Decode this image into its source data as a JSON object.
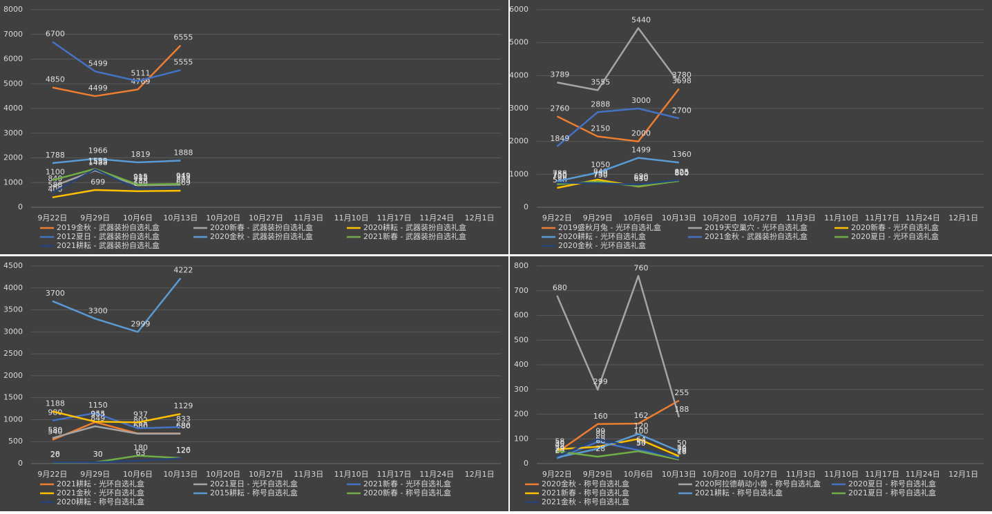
{
  "chart_data": [
    {
      "type": "line",
      "categories": [
        "9月22日",
        "9月29日",
        "10月6日",
        "10月13日",
        "10月20日",
        "10月27日",
        "11月3日",
        "11月10日",
        "11月17日",
        "11月24日",
        "12月1日"
      ],
      "ylim": [
        0,
        8000
      ],
      "yticks": [
        0,
        1000,
        2000,
        3000,
        4000,
        5000,
        6000,
        7000,
        8000
      ],
      "grid": true,
      "legend": "bottom",
      "series": [
        {
          "name": "2019金秋 - 武器装扮自选礼盒",
          "color": "#ed7d31",
          "values": [
            4850,
            4499,
            4769,
            6555,
            null,
            null,
            null,
            null,
            null,
            null,
            null
          ]
        },
        {
          "name": "2020新春 - 武器装扮自选礼盒",
          "color": "#a5a5a5",
          "values": [
            840,
            1488,
            888,
            915,
            null,
            null,
            null,
            null,
            null,
            null,
            null
          ]
        },
        {
          "name": "2020耕耘 - 武器装扮自选礼盒",
          "color": "#ffc000",
          "values": [
            400,
            699,
            650,
            669,
            null,
            null,
            null,
            null,
            null,
            null,
            null
          ]
        },
        {
          "name": "2012夏日 - 武器装扮自选礼盒",
          "color": "#4472c4",
          "values": [
            6700,
            5499,
            5111,
            5555,
            null,
            null,
            null,
            null,
            null,
            null,
            null
          ]
        },
        {
          "name": "2020金秋 - 武器装扮自选礼盒",
          "color": "#5b9bd5",
          "values": [
            1788,
            1966,
            1819,
            1888,
            null,
            null,
            null,
            null,
            null,
            null,
            null
          ]
        },
        {
          "name": "2021新春 - 武器装扮自选礼盒",
          "color": "#70ad47",
          "values": [
            1100,
            1553,
            915,
            949,
            null,
            null,
            null,
            null,
            null,
            null,
            null
          ]
        },
        {
          "name": "2021耕耘 - 武器装扮自选礼盒",
          "color": "#264478",
          "values": [
            588,
            1535,
            738,
            803,
            null,
            null,
            null,
            null,
            null,
            null,
            null
          ]
        }
      ]
    },
    {
      "type": "line",
      "categories": [
        "9月22日",
        "9月29日",
        "10月6日",
        "10月13日",
        "10月20日",
        "10月27日",
        "11月3日",
        "11月10日",
        "11月17日",
        "11月24日",
        "12月1日"
      ],
      "ylim": [
        0,
        6000
      ],
      "yticks": [
        0,
        1000,
        2000,
        3000,
        4000,
        5000,
        6000
      ],
      "grid": true,
      "legend": "bottom",
      "series": [
        {
          "name": "2019盛秋月兔 - 光环自选礼盒",
          "color": "#ed7d31",
          "values": [
            2760,
            2150,
            2000,
            3598,
            null,
            null,
            null,
            null,
            null,
            null,
            null
          ]
        },
        {
          "name": "2019天空巢穴 - 光环自选礼盒",
          "color": "#a5a5a5",
          "values": [
            3789,
            3555,
            5440,
            3780,
            null,
            null,
            null,
            null,
            null,
            null,
            null
          ]
        },
        {
          "name": "2020新春 - 光环自选礼盒",
          "color": "#ffc000",
          "values": [
            588,
            840,
            630,
            805,
            null,
            null,
            null,
            null,
            null,
            null,
            null
          ]
        },
        {
          "name": "2020耕耘 - 光环自选礼盒",
          "color": "#5b9bd5",
          "values": [
            788,
            1050,
            1499,
            1360,
            null,
            null,
            null,
            null,
            null,
            null,
            null
          ]
        },
        {
          "name": "2021金秋 - 武器装扮自选礼盒",
          "color": "#4472c4",
          "values": [
            1849,
            2888,
            3000,
            2700,
            null,
            null,
            null,
            null,
            null,
            null,
            null
          ]
        },
        {
          "name": "2020夏日 - 光环自选礼盒",
          "color": "#70ad47",
          "values": [
            700,
            780,
            640,
            800,
            null,
            null,
            null,
            null,
            null,
            null,
            null
          ]
        },
        {
          "name": "2020金秋 - 光环自选礼盒",
          "color": "#264478",
          "values": [
            750,
            730,
            690,
            825,
            null,
            null,
            null,
            null,
            null,
            null,
            null
          ]
        }
      ]
    },
    {
      "type": "line",
      "categories": [
        "9月22日",
        "9月29日",
        "10月6日",
        "10月13日",
        "10月20日",
        "10月27日",
        "11月3日",
        "11月10日",
        "11月17日",
        "11月24日",
        "12月1日"
      ],
      "ylim": [
        0,
        4500
      ],
      "yticks": [
        0,
        500,
        1000,
        1500,
        2000,
        2500,
        3000,
        3500,
        4000,
        4500
      ],
      "grid": true,
      "legend": "bottom",
      "series": [
        {
          "name": "2021耕耘 - 光环自选礼盒",
          "color": "#ed7d31",
          "values": [
            540,
            944,
            686,
            686,
            null,
            null,
            null,
            null,
            null,
            null,
            null
          ]
        },
        {
          "name": "2021夏日 - 光环自选礼盒",
          "color": "#a5a5a5",
          "values": [
            580,
            849,
            680,
            680,
            null,
            null,
            null,
            null,
            null,
            null,
            null
          ]
        },
        {
          "name": "2021新春 - 光环自选礼盒",
          "color": "#4472c4",
          "values": [
            980,
            1150,
            802,
            833,
            null,
            null,
            null,
            null,
            null,
            null,
            null
          ]
        },
        {
          "name": "2021金秋 - 光环自选礼盒",
          "color": "#ffc000",
          "values": [
            1188,
            955,
            937,
            1129,
            null,
            null,
            null,
            null,
            null,
            null,
            null
          ]
        },
        {
          "name": "2015耕耘 - 称号自选礼盒",
          "color": "#5b9bd5",
          "values": [
            3700,
            3300,
            2999,
            4222,
            null,
            null,
            null,
            null,
            null,
            null,
            null
          ]
        },
        {
          "name": "2020新春 - 称号自选礼盒",
          "color": "#70ad47",
          "values": [
            20,
            30,
            180,
            126,
            null,
            null,
            null,
            null,
            null,
            null,
            null
          ]
        },
        {
          "name": "2020耕耘 - 称号自选礼盒",
          "color": "#264478",
          "values": [
            28,
            30,
            63,
            120,
            null,
            null,
            null,
            null,
            null,
            null,
            null
          ]
        }
      ]
    },
    {
      "type": "line",
      "categories": [
        "9月22日",
        "9月29日",
        "10月6日",
        "10月13日",
        "10月20日",
        "10月27日",
        "11月3日",
        "11月10日",
        "11月17日",
        "11月24日",
        "12月1日"
      ],
      "ylim": [
        0,
        800
      ],
      "yticks": [
        0,
        100,
        200,
        300,
        400,
        500,
        600,
        700,
        800
      ],
      "grid": true,
      "legend": "bottom",
      "series": [
        {
          "name": "2020金秋 - 称号自选礼盒",
          "color": "#ed7d31",
          "values": [
            45,
            160,
            162,
            255,
            null,
            null,
            null,
            null,
            null,
            null,
            null
          ]
        },
        {
          "name": "2020阿拉德萌动小兽 - 称号自选礼盒",
          "color": "#a5a5a5",
          "values": [
            680,
            299,
            760,
            188,
            null,
            null,
            null,
            null,
            null,
            null,
            null
          ]
        },
        {
          "name": "2020夏日 - 称号自选礼盒",
          "color": "#4472c4",
          "values": [
            20,
            88,
            54,
            25,
            null,
            null,
            null,
            null,
            null,
            null,
            null
          ]
        },
        {
          "name": "2021新春 - 称号自选礼盒",
          "color": "#ffc000",
          "values": [
            58,
            68,
            100,
            30,
            null,
            null,
            null,
            null,
            null,
            null,
            null
          ]
        },
        {
          "name": "2021耕耘 - 称号自选礼盒",
          "color": "#5b9bd5",
          "values": [
            25,
            60,
            120,
            50,
            null,
            null,
            null,
            null,
            null,
            null,
            null
          ]
        },
        {
          "name": "2021夏日 - 称号自选礼盒",
          "color": "#70ad47",
          "values": [
            50,
            28,
            50,
            16,
            null,
            null,
            null,
            null,
            null,
            null,
            null
          ]
        },
        {
          "name": "2021金秋 - 称号自选礼盒",
          "color": "#264478",
          "values": [
            29,
            99,
            64,
            20,
            null,
            null,
            null,
            null,
            null,
            null,
            null
          ]
        }
      ]
    }
  ]
}
